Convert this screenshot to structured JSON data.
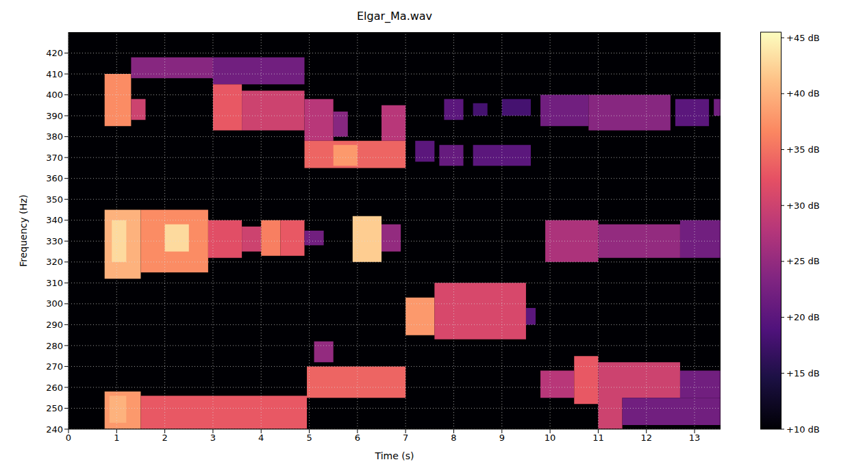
{
  "chart_data": {
    "type": "heatmap",
    "title": "Elgar_Ma.wav",
    "x_label": "Time (s)",
    "y_label": "Frequency (Hz)",
    "xlim": [
      0,
      13.54
    ],
    "xticks": [
      0,
      1,
      2,
      3,
      4,
      5,
      6,
      7,
      8,
      9,
      10,
      11,
      12,
      13
    ],
    "ylim": [
      240,
      430
    ],
    "yticks": [
      240,
      250,
      260,
      270,
      280,
      290,
      300,
      310,
      320,
      330,
      340,
      350,
      360,
      370,
      380,
      390,
      400,
      410,
      420
    ],
    "grid": true,
    "cells": [
      {
        "t": [
          0.75,
          1.5
        ],
        "f": [
          240,
          258
        ],
        "db": 38
      },
      {
        "t": [
          1.5,
          4.95
        ],
        "f": [
          240,
          256
        ],
        "db": 33
      },
      {
        "t": [
          0.85,
          1.2
        ],
        "f": [
          243,
          256
        ],
        "db": 40
      },
      {
        "t": [
          0.75,
          1.5
        ],
        "f": [
          312,
          345
        ],
        "db": 40
      },
      {
        "t": [
          1.5,
          2.9
        ],
        "f": [
          315,
          345
        ],
        "db": 37
      },
      {
        "t": [
          0.9,
          1.2
        ],
        "f": [
          320,
          340
        ],
        "db": 43
      },
      {
        "t": [
          2.0,
          2.5
        ],
        "f": [
          325,
          338
        ],
        "db": 43
      },
      {
        "t": [
          2.9,
          3.6
        ],
        "f": [
          322,
          340
        ],
        "db": 32
      },
      {
        "t": [
          3.6,
          4.0
        ],
        "f": [
          325,
          337
        ],
        "db": 30
      },
      {
        "t": [
          4.0,
          4.4
        ],
        "f": [
          323,
          340
        ],
        "db": 36
      },
      {
        "t": [
          4.4,
          4.9
        ],
        "f": [
          323,
          340
        ],
        "db": 33
      },
      {
        "t": [
          4.9,
          5.3
        ],
        "f": [
          328,
          335
        ],
        "db": 22
      },
      {
        "t": [
          5.9,
          6.5
        ],
        "f": [
          320,
          342
        ],
        "db": 42
      },
      {
        "t": [
          6.5,
          6.9
        ],
        "f": [
          325,
          338
        ],
        "db": 25
      },
      {
        "t": [
          0.75,
          1.3
        ],
        "f": [
          385,
          410
        ],
        "db": 37
      },
      {
        "t": [
          1.3,
          1.6
        ],
        "f": [
          388,
          398
        ],
        "db": 30
      },
      {
        "t": [
          1.3,
          3.0
        ],
        "f": [
          408,
          418
        ],
        "db": 24
      },
      {
        "t": [
          3.0,
          4.9
        ],
        "f": [
          405,
          418
        ],
        "db": 22
      },
      {
        "t": [
          3.0,
          3.6
        ],
        "f": [
          383,
          405
        ],
        "db": 33
      },
      {
        "t": [
          3.6,
          4.9
        ],
        "f": [
          383,
          402
        ],
        "db": 30
      },
      {
        "t": [
          4.9,
          5.5
        ],
        "f": [
          378,
          398
        ],
        "db": 28
      },
      {
        "t": [
          5.5,
          5.8
        ],
        "f": [
          380,
          392
        ],
        "db": 24
      },
      {
        "t": [
          6.5,
          7.0
        ],
        "f": [
          378,
          395
        ],
        "db": 28
      },
      {
        "t": [
          4.9,
          7.0
        ],
        "f": [
          365,
          378
        ],
        "db": 34
      },
      {
        "t": [
          5.5,
          6.0
        ],
        "f": [
          366,
          376
        ],
        "db": 38
      },
      {
        "t": [
          7.2,
          7.6
        ],
        "f": [
          368,
          378
        ],
        "db": 20
      },
      {
        "t": [
          7.7,
          8.2
        ],
        "f": [
          366,
          376
        ],
        "db": 21
      },
      {
        "t": [
          8.4,
          9.6
        ],
        "f": [
          366,
          376
        ],
        "db": 20
      },
      {
        "t": [
          4.95,
          7.0
        ],
        "f": [
          255,
          270
        ],
        "db": 34
      },
      {
        "t": [
          5.1,
          5.5
        ],
        "f": [
          272,
          282
        ],
        "db": 25
      },
      {
        "t": [
          7.0,
          7.6
        ],
        "f": [
          285,
          303
        ],
        "db": 38
      },
      {
        "t": [
          7.6,
          9.5
        ],
        "f": [
          283,
          310
        ],
        "db": 31
      },
      {
        "t": [
          9.5,
          9.7
        ],
        "f": [
          290,
          298
        ],
        "db": 20
      },
      {
        "t": [
          7.8,
          8.2
        ],
        "f": [
          388,
          398
        ],
        "db": 20
      },
      {
        "t": [
          8.4,
          8.7
        ],
        "f": [
          390,
          396
        ],
        "db": 18
      },
      {
        "t": [
          9.0,
          9.6
        ],
        "f": [
          390,
          398
        ],
        "db": 18
      },
      {
        "t": [
          9.8,
          10.8
        ],
        "f": [
          385,
          400
        ],
        "db": 22
      },
      {
        "t": [
          10.8,
          12.5
        ],
        "f": [
          383,
          400
        ],
        "db": 24
      },
      {
        "t": [
          12.6,
          13.3
        ],
        "f": [
          385,
          398
        ],
        "db": 20
      },
      {
        "t": [
          13.4,
          13.54
        ],
        "f": [
          390,
          398
        ],
        "db": 22
      },
      {
        "t": [
          9.9,
          11.0
        ],
        "f": [
          320,
          340
        ],
        "db": 27
      },
      {
        "t": [
          11.0,
          12.7
        ],
        "f": [
          322,
          338
        ],
        "db": 25
      },
      {
        "t": [
          12.7,
          13.54
        ],
        "f": [
          322,
          340
        ],
        "db": 22
      },
      {
        "t": [
          9.8,
          10.5
        ],
        "f": [
          255,
          268
        ],
        "db": 28
      },
      {
        "t": [
          10.5,
          11.0
        ],
        "f": [
          252,
          275
        ],
        "db": 33
      },
      {
        "t": [
          11.0,
          12.7
        ],
        "f": [
          255,
          272
        ],
        "db": 30
      },
      {
        "t": [
          12.7,
          13.54
        ],
        "f": [
          255,
          268
        ],
        "db": 22
      },
      {
        "t": [
          11.0,
          11.5
        ],
        "f": [
          240,
          256
        ],
        "db": 30
      },
      {
        "t": [
          11.5,
          13.54
        ],
        "f": [
          242,
          255
        ],
        "db": 22
      }
    ],
    "colorbar": {
      "range": [
        10,
        45.5
      ],
      "ticks": [
        {
          "value": 10,
          "label": "+10 dB"
        },
        {
          "value": 15,
          "label": "+15 dB"
        },
        {
          "value": 20,
          "label": "+20 dB"
        },
        {
          "value": 25,
          "label": "+25 dB"
        },
        {
          "value": 30,
          "label": "+30 dB"
        },
        {
          "value": 35,
          "label": "+35 dB"
        },
        {
          "value": 40,
          "label": "+40 dB"
        },
        {
          "value": 45,
          "label": "+45 dB"
        }
      ]
    }
  }
}
